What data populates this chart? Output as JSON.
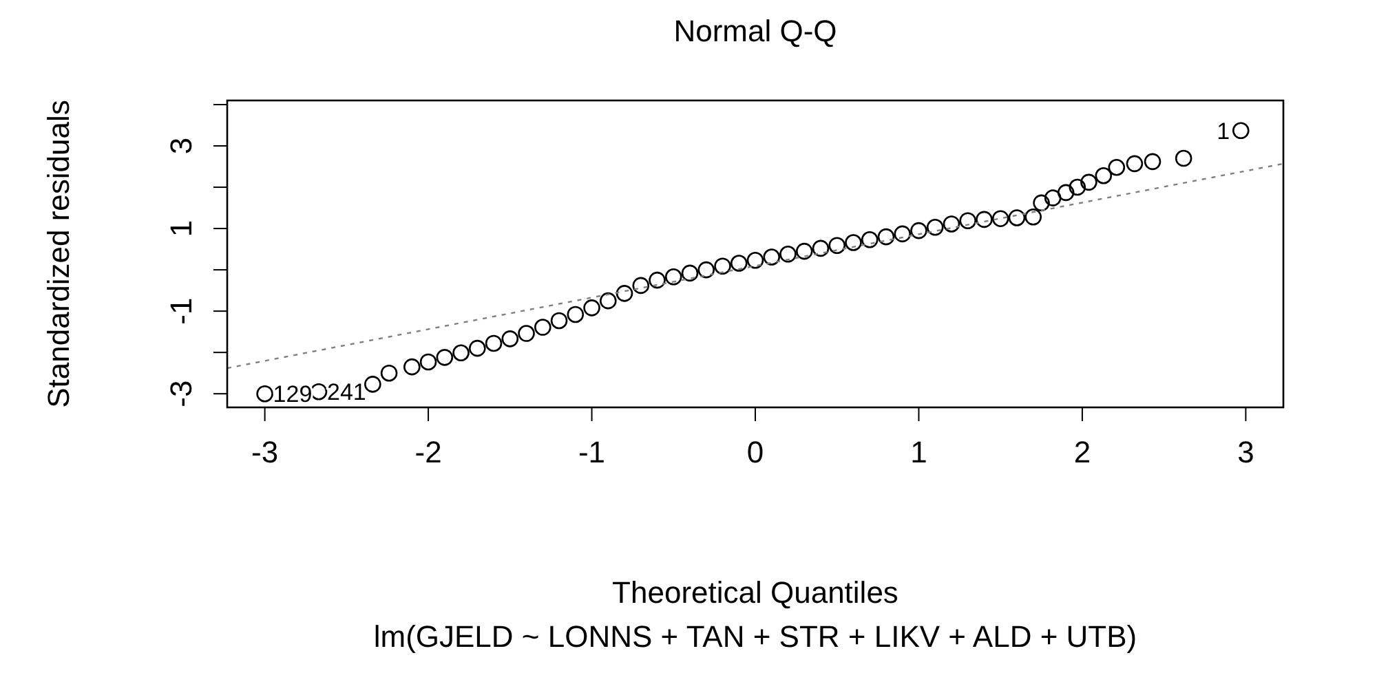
{
  "chart_data": {
    "type": "scatter",
    "title": "Normal Q-Q",
    "xlabel": "Theoretical Quantiles",
    "ylabel": "Standardized residuals",
    "grid": false,
    "xlim": [
      -3.23,
      3.23
    ],
    "xticks": [
      -3,
      -2,
      -1,
      0,
      1,
      2,
      3
    ],
    "ylim": [
      -3.33,
      4.1
    ],
    "yticks": [
      {
        "value": -3,
        "label": "-3"
      },
      {
        "value": -2,
        "label": null
      },
      {
        "value": -1,
        "label": "-1"
      },
      {
        "value": 0,
        "label": null
      },
      {
        "value": 1,
        "label": "1"
      },
      {
        "value": 2,
        "label": null
      },
      {
        "value": 3,
        "label": "3"
      },
      {
        "value": 4,
        "label": null
      }
    ],
    "series": [
      {
        "marker": "circle",
        "color": "#000000",
        "x": [
          -3.0,
          -2.67,
          -2.34,
          -2.24,
          -2.1,
          -2.0,
          -1.9,
          -1.8,
          -1.7,
          -1.6,
          -1.5,
          -1.4,
          -1.3,
          -1.2,
          -1.1,
          -1.0,
          -0.9,
          -0.8,
          -0.7,
          -0.6,
          -0.5,
          -0.4,
          -0.3,
          -0.2,
          -0.1,
          0.0,
          0.1,
          0.2,
          0.3,
          0.4,
          0.5,
          0.6,
          0.7,
          0.8,
          0.9,
          1.0,
          1.1,
          1.2,
          1.3,
          1.4,
          1.5,
          1.6,
          1.7,
          1.75,
          1.82,
          1.9,
          1.97,
          2.04,
          2.13,
          2.21,
          2.32,
          2.43,
          2.62,
          2.97
        ],
        "values": [
          -3.0,
          -2.95,
          -2.77,
          -2.5,
          -2.35,
          -2.23,
          -2.12,
          -2.01,
          -1.9,
          -1.78,
          -1.67,
          -1.54,
          -1.39,
          -1.23,
          -1.08,
          -0.92,
          -0.75,
          -0.57,
          -0.38,
          -0.25,
          -0.17,
          -0.08,
          0.0,
          0.09,
          0.16,
          0.23,
          0.31,
          0.38,
          0.45,
          0.52,
          0.59,
          0.66,
          0.73,
          0.8,
          0.87,
          0.95,
          1.03,
          1.11,
          1.19,
          1.22,
          1.24,
          1.26,
          1.28,
          1.62,
          1.74,
          1.87,
          2.0,
          2.12,
          2.28,
          2.48,
          2.57,
          2.62,
          2.7,
          3.37
        ]
      },
      {
        "type": "line",
        "color": "#808080",
        "line_style": "dotted",
        "x": [
          -3.23,
          3.23
        ],
        "values": [
          -2.38,
          2.57
        ]
      }
    ],
    "annotations": [
      {
        "text": "129",
        "x": -3.0,
        "y": -3.0
      },
      {
        "text": "241",
        "x": -2.67,
        "y": -2.95
      },
      {
        "text": "1",
        "x": 2.97,
        "y": 3.37
      },
      "lm(GJELD ~ LONNS + TAN + STR + LIKV + ALD + UTB)"
    ]
  }
}
